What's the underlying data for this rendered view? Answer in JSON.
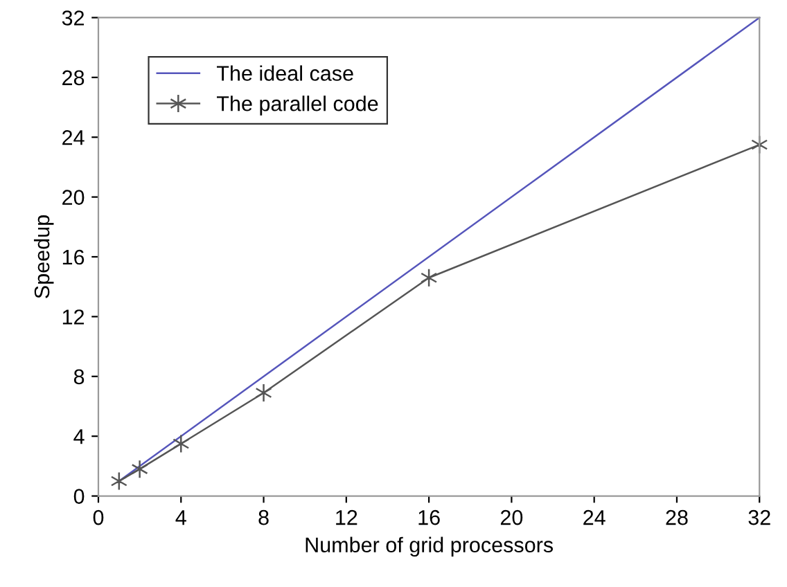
{
  "chart_data": {
    "type": "line",
    "xlabel": "Number of grid processors",
    "ylabel": "Speedup",
    "xlim": [
      0,
      32
    ],
    "ylim": [
      0,
      32
    ],
    "xticks": [
      0,
      4,
      8,
      12,
      16,
      20,
      24,
      28,
      32
    ],
    "yticks": [
      0,
      4,
      8,
      12,
      16,
      20,
      24,
      28,
      32
    ],
    "legend": "top left",
    "grid": false,
    "series": [
      {
        "name": "The ideal case",
        "color": "#5555bb",
        "x": [
          1,
          32
        ],
        "values": [
          1,
          32
        ],
        "marker": "none"
      },
      {
        "name": "The parallel code",
        "color": "#555555",
        "x": [
          1,
          2,
          4,
          8,
          16,
          32
        ],
        "values": [
          1.0,
          1.8,
          3.5,
          6.9,
          14.6,
          23.5
        ],
        "marker": "cross"
      }
    ]
  }
}
